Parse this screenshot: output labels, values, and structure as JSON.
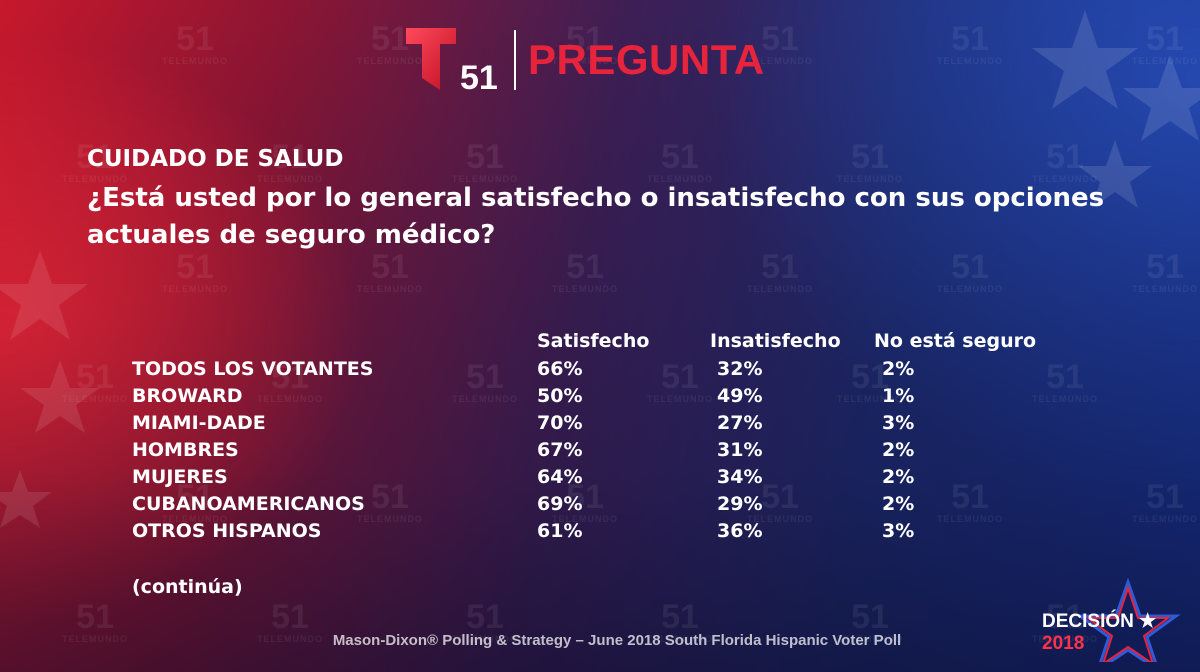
{
  "colors": {
    "accent_red": "#e8243c",
    "text": "#ffffff",
    "background_left": "#c8182c",
    "background_right": "#16308a"
  },
  "header": {
    "logo_mark": "T",
    "logo_number": "51",
    "title": "PREGUNTA"
  },
  "watermark": {
    "number": "51",
    "brand": "TELEMUNDO"
  },
  "question": {
    "topic": "CUIDADO DE SALUD",
    "text": "¿Está usted por lo general satisfecho o insatisfecho con sus opciones actuales de seguro médico?"
  },
  "table": {
    "columns": [
      "Satisfecho",
      "Insatisfecho",
      "No está seguro"
    ],
    "rows": [
      {
        "label": "TODOS LOS VOTANTES",
        "values": [
          "66%",
          "32%",
          "2%"
        ]
      },
      {
        "label": "BROWARD",
        "values": [
          "50%",
          "49%",
          "1%"
        ]
      },
      {
        "label": "MIAMI-DADE",
        "values": [
          "70%",
          "27%",
          "3%"
        ]
      },
      {
        "label": "HOMBRES",
        "values": [
          "67%",
          "31%",
          "2%"
        ]
      },
      {
        "label": "MUJERES",
        "values": [
          "64%",
          "34%",
          "2%"
        ]
      },
      {
        "label": "CUBANOAMERICANOS",
        "values": [
          "69%",
          "29%",
          "2%"
        ]
      },
      {
        "label": "OTROS HISPANOS",
        "values": [
          "61%",
          "36%",
          "3%"
        ]
      }
    ]
  },
  "continues": "(continúa)",
  "footer": {
    "source": "Mason-Dixon® Polling & Strategy – June 2018 South Florida Hispanic Voter Poll"
  },
  "badge": {
    "word": "DECISIÓN",
    "star": "★",
    "year": "2018"
  }
}
